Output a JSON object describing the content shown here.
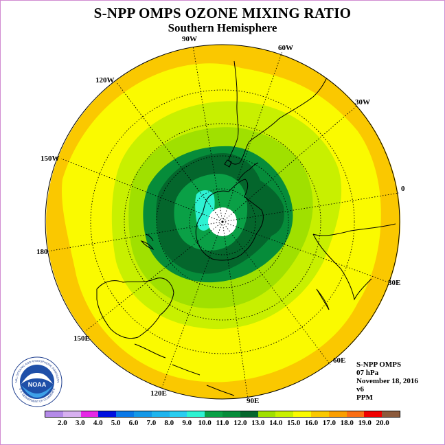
{
  "title": "S-NPP OMPS OZONE MIXING RATIO",
  "subtitle": "Southern Hemisphere",
  "meridian_labels": [
    "90W",
    "60W",
    "30W",
    "0",
    "30E",
    "60E",
    "90E",
    "120E",
    "150E",
    "180",
    "150W",
    "120W"
  ],
  "info": {
    "instrument": "S-NPP OMPS",
    "level": "07 hPa",
    "date": "November 18, 2016",
    "version": "v6",
    "units": "PPM"
  },
  "logo_text": "NOAA",
  "logo_ring_text": "NATIONAL OCEANIC AND ATMOSPHERIC ADMINISTRATION",
  "logo_ring_text_bottom": "U.S. DEPARTMENT OF COMMERCE",
  "colorbar": {
    "ticks": [
      "2.0",
      "3.0",
      "4.0",
      "5.0",
      "6.0",
      "7.0",
      "8.0",
      "9.0",
      "10.0",
      "11.0",
      "12.0",
      "13.0",
      "14.0",
      "15.0",
      "16.0",
      "17.0",
      "18.0",
      "19.0",
      "20.0"
    ],
    "colors": [
      "#b48ae8",
      "#d7b0f0",
      "#e628e6",
      "#0010e0",
      "#0a78e8",
      "#1498e8",
      "#1eb4ee",
      "#28cdf0",
      "#2ef2d2",
      "#0aa046",
      "#068c3a",
      "#04662c",
      "#a0e000",
      "#c8f000",
      "#fafa00",
      "#fac800",
      "#fa9e00",
      "#fa6e14",
      "#f00000",
      "#8c5a3c"
    ]
  }
}
